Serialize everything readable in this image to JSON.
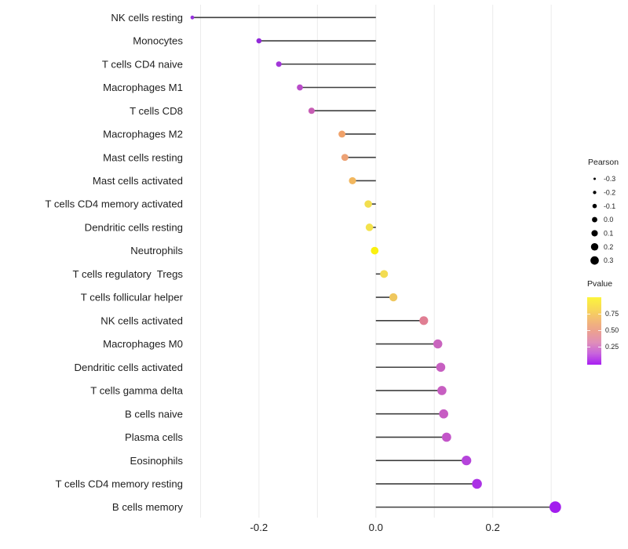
{
  "chart_data": {
    "type": "lollipop",
    "title": "",
    "xlabel": "",
    "ylabel": "",
    "xlim": [
      -0.32,
      0.318
    ],
    "grid": "vertical gridlines only",
    "grid_values": [
      -0.3,
      -0.2,
      -0.1,
      0.0,
      0.1,
      0.2,
      0.3
    ],
    "x_tick_labels": [
      {
        "value": -0.2,
        "label": "-0.2"
      },
      {
        "value": 0.0,
        "label": "0.0"
      },
      {
        "value": 0.2,
        "label": "0.2"
      }
    ],
    "rows": [
      {
        "label": "NK cells resting",
        "pearson": -0.314,
        "color": "#9632DD"
      },
      {
        "label": "Monocytes",
        "pearson": -0.2,
        "color": "#9129D9"
      },
      {
        "label": "T cells CD4 naive",
        "pearson": -0.166,
        "color": "#A236D8"
      },
      {
        "label": "Macrophages M1",
        "pearson": -0.13,
        "color": "#B94BC9"
      },
      {
        "label": "T cells CD8",
        "pearson": -0.11,
        "color": "#C75DB4"
      },
      {
        "label": "Macrophages M2",
        "pearson": -0.058,
        "color": "#F0A26A"
      },
      {
        "label": "Mast cells resting",
        "pearson": -0.053,
        "color": "#EDA275"
      },
      {
        "label": "Mast cells activated",
        "pearson": -0.04,
        "color": "#F2B75E"
      },
      {
        "label": "T cells CD4 memory activated",
        "pearson": -0.013,
        "color": "#F2DE4E"
      },
      {
        "label": "Dendritic cells resting",
        "pearson": -0.011,
        "color": "#F3E24B"
      },
      {
        "label": "Neutrophils",
        "pearson": -0.002,
        "color": "#FAF00F"
      },
      {
        "label": "T cells regulatory  Tregs",
        "pearson": 0.014,
        "color": "#F3DC51"
      },
      {
        "label": "T cells follicular helper",
        "pearson": 0.03,
        "color": "#EFC75E"
      },
      {
        "label": "NK cells activated",
        "pearson": 0.082,
        "color": "#E07E93"
      },
      {
        "label": "Macrophages M0",
        "pearson": 0.106,
        "color": "#C964BE"
      },
      {
        "label": "Dendritic cells activated",
        "pearson": 0.111,
        "color": "#C75FC1"
      },
      {
        "label": "T cells gamma delta",
        "pearson": 0.113,
        "color": "#C75EC1"
      },
      {
        "label": "B cells naive",
        "pearson": 0.116,
        "color": "#C75CC3"
      },
      {
        "label": "Plasma cells",
        "pearson": 0.121,
        "color": "#C355C9"
      },
      {
        "label": "Eosinophils",
        "pearson": 0.155,
        "color": "#B544DB"
      },
      {
        "label": "T cells CD4 memory resting",
        "pearson": 0.173,
        "color": "#AB32E5"
      },
      {
        "label": "B cells memory",
        "pearson": 0.307,
        "color": "#A21DEE"
      }
    ]
  },
  "legend_pearson": {
    "title": "Pearson",
    "entries": [
      {
        "label": "-0.3",
        "value": -0.3
      },
      {
        "label": "-0.2",
        "value": -0.2
      },
      {
        "label": "-0.1",
        "value": -0.1
      },
      {
        "label": "0.0",
        "value": 0.0
      },
      {
        "label": "0.1",
        "value": 0.1
      },
      {
        "label": "0.2",
        "value": 0.2
      },
      {
        "label": "0.3",
        "value": 0.3
      }
    ]
  },
  "legend_pvalue": {
    "title": "Pvalue",
    "tick_labels": [
      "0.75",
      "0.50",
      "0.25"
    ],
    "gradient_colors": [
      "#FCF53C",
      "#F8DA55",
      "#F3BB74",
      "#ECA18F",
      "#E08FB8",
      "#C865DC",
      "#A81FF2"
    ]
  },
  "colors": {
    "background": "#FFFFFF",
    "gridline": "#EBEBEB",
    "stem": "#3F3F3F",
    "axis_text": "#212121",
    "legend_dot": "#000000"
  }
}
